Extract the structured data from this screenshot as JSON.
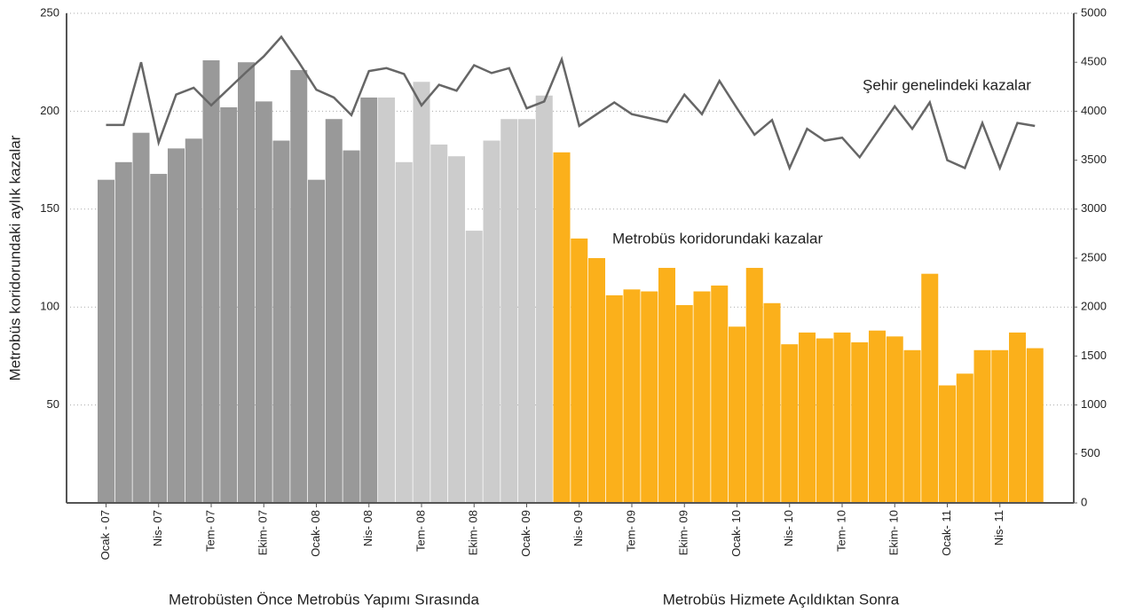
{
  "chart_data": {
    "type": "bar",
    "y_label": "Metrobüs koridorundaki aylık kazalar",
    "annotations": [
      "Şehir genelindeki kazalar",
      "Metrobüs koridorundaki kazalar"
    ],
    "section_labels": [
      "Metrobüsten Önce Metrobüs Yapımı Sırasında",
      "Metrobüs Hizmete Açıldıktan Sonra"
    ],
    "categories": [
      "Ocak - 07",
      null,
      null,
      "Nis- 07",
      null,
      null,
      "Tem- 07",
      null,
      null,
      "Ekim- 07",
      null,
      null,
      "Ocak- 08",
      null,
      null,
      "Nis- 08",
      null,
      null,
      "Tem- 08",
      null,
      null,
      "Ekim- 08",
      null,
      null,
      "Ocak- 09",
      null,
      null,
      "Nis- 09",
      null,
      null,
      "Tem- 09",
      null,
      null,
      "Ekim- 09",
      null,
      null,
      "Ocak- 10",
      null,
      null,
      "Nis- 10",
      null,
      null,
      "Tem- 10",
      null,
      null,
      "Ekim- 10",
      null,
      null,
      "Ocak- 11",
      null,
      null,
      "Nis- 11",
      null,
      null
    ],
    "series": [
      {
        "type": "bar",
        "color": "#999999",
        "values": [
          165,
          174,
          189,
          168,
          181,
          186,
          226,
          202,
          225,
          205,
          185,
          221,
          165,
          196,
          180,
          207,
          null,
          null,
          null,
          null,
          null,
          null,
          null,
          null,
          null,
          null,
          null,
          null,
          null,
          null,
          null,
          null,
          null,
          null,
          null,
          null,
          null,
          null,
          null,
          null,
          null,
          null,
          null,
          null,
          null,
          null,
          null,
          null,
          null,
          null,
          null,
          null,
          null,
          null
        ]
      },
      {
        "type": "bar",
        "color": "#cccccc",
        "values": [
          null,
          null,
          null,
          null,
          null,
          null,
          null,
          null,
          null,
          null,
          null,
          null,
          null,
          null,
          null,
          null,
          207,
          174,
          215,
          183,
          177,
          139,
          185,
          196,
          196,
          208,
          null,
          null,
          null,
          null,
          null,
          null,
          null,
          null,
          null,
          null,
          null,
          null,
          null,
          null,
          null,
          null,
          null,
          null,
          null,
          null,
          null,
          null,
          null,
          null,
          null,
          null,
          null,
          null
        ]
      },
      {
        "type": "bar",
        "color": "#fbb01b",
        "values": [
          null,
          null,
          null,
          null,
          null,
          null,
          null,
          null,
          null,
          null,
          null,
          null,
          null,
          null,
          null,
          null,
          null,
          null,
          null,
          null,
          null,
          null,
          null,
          null,
          null,
          null,
          179,
          135,
          125,
          106,
          109,
          108,
          120,
          101,
          108,
          111,
          90,
          120,
          102,
          81,
          87,
          84,
          87,
          82,
          88,
          85,
          78,
          117,
          60,
          66,
          78,
          78,
          87,
          79
        ]
      },
      {
        "type": "line",
        "axis": "y2",
        "color": "#666666",
        "values": [
          3860,
          3860,
          4500,
          3680,
          4170,
          4240,
          4060,
          4230,
          4400,
          4560,
          4760,
          4500,
          4220,
          4140,
          3960,
          4410,
          4440,
          4380,
          4060,
          4270,
          4210,
          4470,
          4390,
          4440,
          4030,
          4100,
          4530,
          3850,
          3970,
          4090,
          3970,
          3930,
          3890,
          4170,
          3970,
          4310,
          4030,
          3760,
          3910,
          3420,
          3820,
          3700,
          3730,
          3530,
          3790,
          4050,
          3820,
          4090,
          3500,
          3420,
          3880,
          3420,
          3880,
          3850
        ]
      }
    ],
    "ylim": [
      0,
      250
    ],
    "yticks": [
      50,
      100,
      150,
      200,
      250
    ],
    "y2lim": [
      0,
      5000
    ],
    "y2ticks": [
      0,
      500,
      1000,
      1500,
      2000,
      2500,
      3000,
      3500,
      4000,
      4500,
      5000
    ],
    "grid": true
  }
}
